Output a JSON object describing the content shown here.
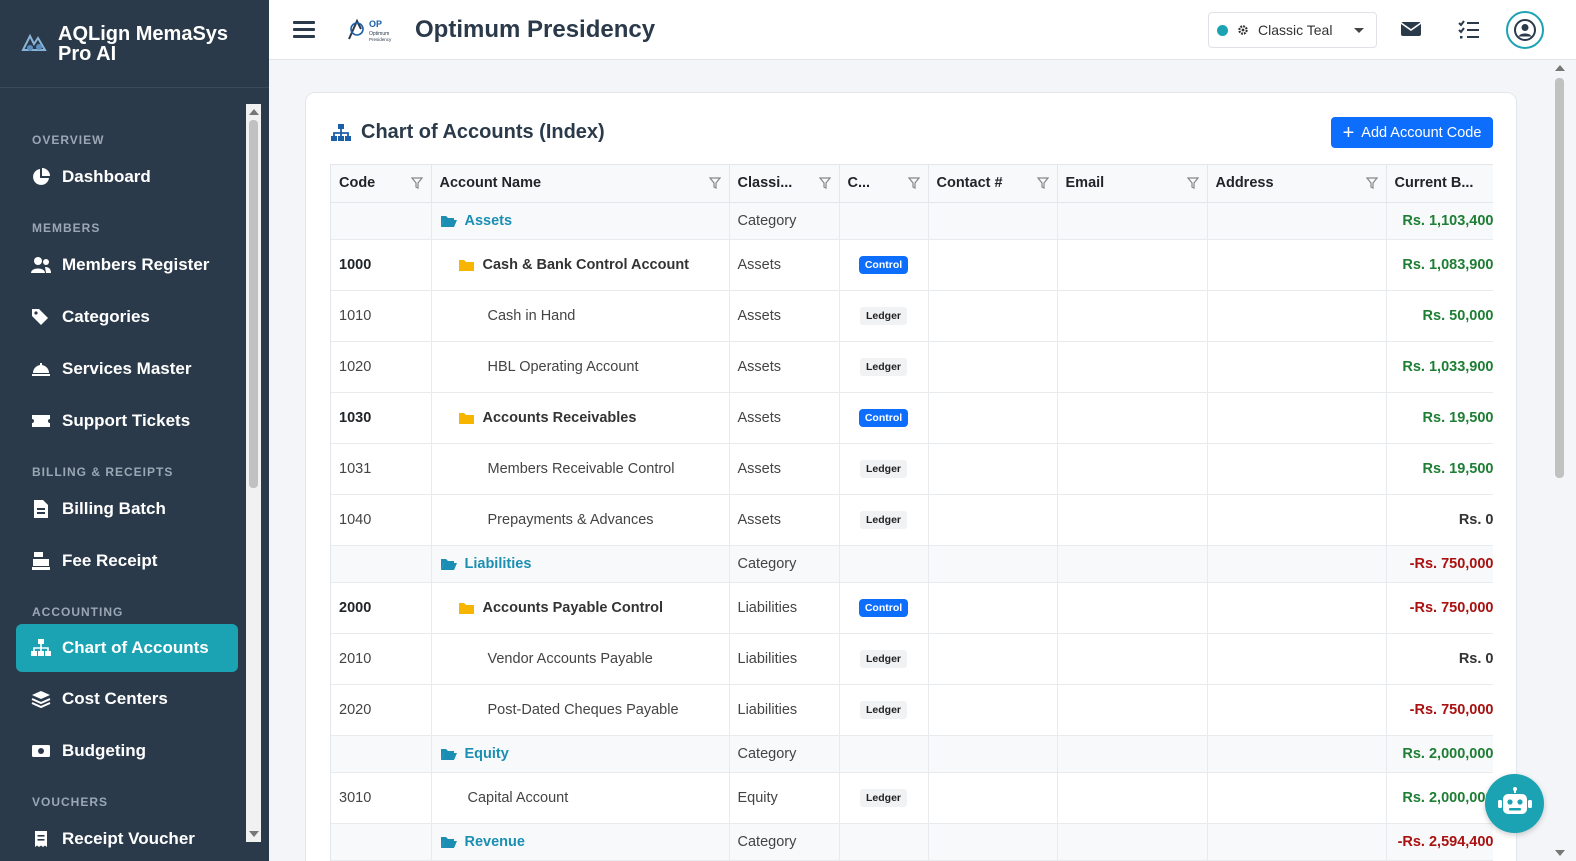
{
  "brand": {
    "name_line1": "AQLign MemaSys",
    "name_line2": "Pro AI"
  },
  "sidebar": {
    "sections": [
      {
        "title": "OVERVIEW",
        "items": [
          {
            "label": "Dashboard",
            "icon": "chart-pie-icon"
          }
        ]
      },
      {
        "title": "MEMBERS",
        "items": [
          {
            "label": "Members Register",
            "icon": "users-icon"
          },
          {
            "label": "Categories",
            "icon": "tags-icon"
          },
          {
            "label": "Services Master",
            "icon": "bell-concierge-icon"
          },
          {
            "label": "Support Tickets",
            "icon": "ticket-icon"
          }
        ]
      },
      {
        "title": "BILLING & RECEIPTS",
        "items": [
          {
            "label": "Billing Batch",
            "icon": "file-invoice-icon"
          },
          {
            "label": "Fee Receipt",
            "icon": "cash-register-icon"
          }
        ]
      },
      {
        "title": "ACCOUNTING",
        "items": [
          {
            "label": "Chart of Accounts",
            "icon": "sitemap-icon",
            "active": true
          },
          {
            "label": "Cost Centers",
            "icon": "layer-group-icon"
          },
          {
            "label": "Budgeting",
            "icon": "money-bill-icon"
          }
        ]
      },
      {
        "title": "VOUCHERS",
        "items": [
          {
            "label": "Receipt Voucher",
            "icon": "receipt-icon"
          }
        ]
      }
    ]
  },
  "header": {
    "title": "Optimum Presidency",
    "logo_text": "OP Optimum Presidency",
    "theme": {
      "selected": "Classic Teal",
      "accent": "#1ba3b3"
    }
  },
  "page": {
    "title": "Chart of Accounts (Index)",
    "add_button": "Add Account Code"
  },
  "table": {
    "columns": [
      "Code",
      "Account Name",
      "Classi...",
      "C...",
      "Contact #",
      "Email",
      "Address",
      "Current B..."
    ],
    "rows": [
      {
        "kind": "category",
        "code": "",
        "name": "Assets",
        "class": "Category",
        "type": "",
        "balance": "Rs. 1,103,400",
        "sign": "pos"
      },
      {
        "kind": "control",
        "code": "1000",
        "name": "Cash & Bank Control Account",
        "class": "Assets",
        "type": "Control",
        "balance": "Rs. 1,083,900",
        "sign": "pos"
      },
      {
        "kind": "ledger",
        "code": "1010",
        "name": "Cash in Hand",
        "class": "Assets",
        "type": "Ledger",
        "balance": "Rs. 50,000",
        "sign": "pos"
      },
      {
        "kind": "ledger",
        "code": "1020",
        "name": "HBL Operating Account",
        "class": "Assets",
        "type": "Ledger",
        "balance": "Rs. 1,033,900",
        "sign": "pos"
      },
      {
        "kind": "control",
        "code": "1030",
        "name": "Accounts Receivables",
        "class": "Assets",
        "type": "Control",
        "balance": "Rs. 19,500",
        "sign": "pos"
      },
      {
        "kind": "ledger",
        "code": "1031",
        "name": "Members Receivable Control",
        "class": "Assets",
        "type": "Ledger",
        "balance": "Rs. 19,500",
        "sign": "pos"
      },
      {
        "kind": "ledger",
        "code": "1040",
        "name": "Prepayments & Advances",
        "class": "Assets",
        "type": "Ledger",
        "balance": "Rs. 0",
        "sign": "zero"
      },
      {
        "kind": "category",
        "code": "",
        "name": "Liabilities",
        "class": "Category",
        "type": "",
        "balance": "-Rs. 750,000",
        "sign": "neg"
      },
      {
        "kind": "control",
        "code": "2000",
        "name": "Accounts Payable Control",
        "class": "Liabilities",
        "type": "Control",
        "balance": "-Rs. 750,000",
        "sign": "neg"
      },
      {
        "kind": "ledger",
        "code": "2010",
        "name": "Vendor Accounts Payable",
        "class": "Liabilities",
        "type": "Ledger",
        "balance": "Rs. 0",
        "sign": "zero"
      },
      {
        "kind": "ledger",
        "code": "2020",
        "name": "Post-Dated Cheques Payable",
        "class": "Liabilities",
        "type": "Ledger",
        "balance": "-Rs. 750,000",
        "sign": "neg"
      },
      {
        "kind": "category",
        "code": "",
        "name": "Equity",
        "class": "Category",
        "type": "",
        "balance": "Rs. 2,000,000",
        "sign": "pos"
      },
      {
        "kind": "ledger-top",
        "code": "3010",
        "name": "Capital Account",
        "class": "Equity",
        "type": "Ledger",
        "balance": "Rs. 2,000,000",
        "sign": "pos"
      },
      {
        "kind": "category",
        "code": "",
        "name": "Revenue",
        "class": "Category",
        "type": "",
        "balance": "-Rs. 2,594,400",
        "sign": "neg"
      }
    ]
  }
}
